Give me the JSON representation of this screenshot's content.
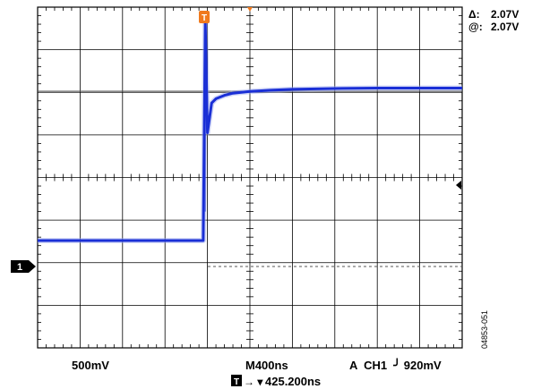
{
  "chart_data": {
    "type": "line",
    "grid": true,
    "x_divisions": 10,
    "y_divisions": 8,
    "cursor": {
      "delta_label": "Δ:",
      "delta_value": "2.07V",
      "at_label": "@:",
      "at_value": "2.07V"
    },
    "ch1_scale": "500mV",
    "timebase": "M400ns",
    "trigger_readout": "A  CH1  ╯ 920mV",
    "trigger_position": "425.200ns",
    "channel_marker": "1",
    "trigger_marker": "T",
    "figure_id": "04853-051",
    "colors": {
      "trace": "#1a2fd6",
      "trigger": "#f07a1d",
      "grid": "#000000",
      "cursor": "#555555"
    },
    "series": [
      {
        "x": [
          0,
          1.0,
          2.0,
          3.0,
          3.9,
          3.95,
          4.0,
          4.1,
          4.2,
          4.4,
          4.6,
          5.0,
          5.5,
          6.0,
          7.0,
          8.0,
          9.0,
          10.0
        ],
        "y": [
          2.52,
          2.52,
          2.52,
          2.52,
          2.52,
          7.65,
          5.05,
          5.75,
          5.85,
          5.93,
          5.98,
          6.02,
          6.05,
          6.07,
          6.09,
          6.1,
          6.1,
          6.1
        ]
      }
    ]
  }
}
